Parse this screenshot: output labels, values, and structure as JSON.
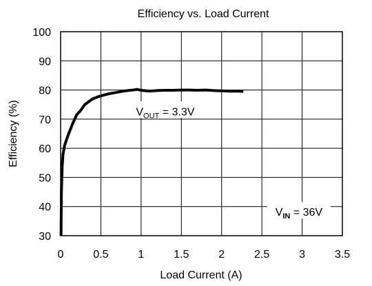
{
  "chart_data": {
    "type": "line",
    "title": "Efficiency vs. Load Current",
    "xlabel": "Load Current (A)",
    "ylabel": "Efficiency (%)",
    "xlim": [
      0,
      3.5
    ],
    "ylim": [
      30,
      100
    ],
    "x_ticks": [
      0,
      0.5,
      1,
      1.5,
      2,
      2.5,
      3,
      3.5
    ],
    "x_tick_labels": [
      "0",
      "0.5",
      "1",
      "1.5",
      "2",
      "2.5",
      "3",
      "3.5"
    ],
    "y_ticks": [
      30,
      40,
      50,
      60,
      70,
      80,
      90,
      100
    ],
    "y_tick_labels": [
      "30",
      "40",
      "50",
      "60",
      "70",
      "80",
      "90",
      "100"
    ],
    "grid": true,
    "series": [
      {
        "color": "#000000",
        "x": [
          0.005,
          0.01,
          0.02,
          0.03,
          0.05,
          0.08,
          0.1,
          0.15,
          0.2,
          0.25,
          0.3,
          0.35,
          0.4,
          0.45,
          0.5,
          0.6,
          0.7,
          0.8,
          0.9,
          0.95,
          1.0,
          1.1,
          1.2,
          1.3,
          1.4,
          1.5,
          1.6,
          1.7,
          1.8,
          1.9,
          2.0,
          2.1,
          2.2,
          2.27
        ],
        "y": [
          30,
          45,
          54,
          58,
          61,
          63.5,
          65,
          68.5,
          71.5,
          73,
          75,
          76,
          77,
          77.5,
          78,
          78.7,
          79.2,
          79.7,
          80,
          80.2,
          79.9,
          79.6,
          79.8,
          79.9,
          79.9,
          80,
          80,
          79.9,
          80,
          79.8,
          79.7,
          79.6,
          79.6,
          79.5
        ]
      }
    ],
    "annotations": [
      {
        "id": "vout",
        "main": "V",
        "sub": "OUT",
        "rest": " = 3.3V",
        "x": 1.3,
        "y": 72.5
      },
      {
        "id": "vin",
        "main": "V",
        "sub": "IN",
        "rest": " = 36V",
        "x": 2.96,
        "y": 38
      }
    ]
  }
}
